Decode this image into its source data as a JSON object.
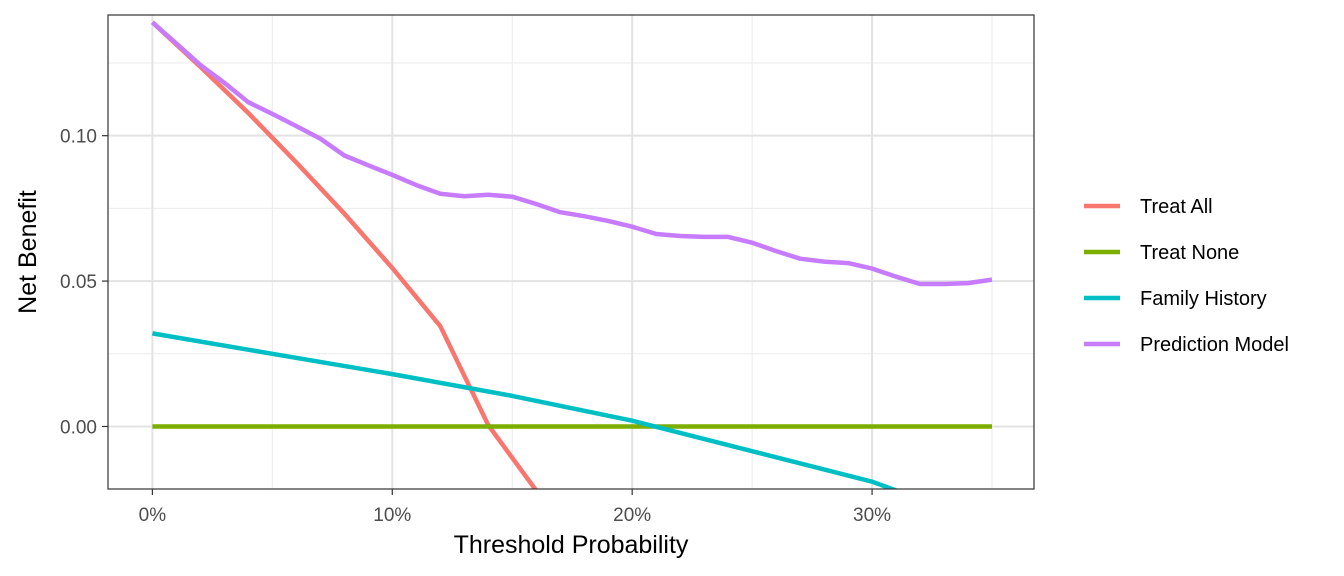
{
  "chart_data": {
    "type": "line",
    "title": "",
    "xlabel": "Threshold Probability",
    "ylabel": "Net Benefit",
    "xlim": [
      -0.0185,
      0.3675
    ],
    "ylim": [
      -0.0215,
      0.1415
    ],
    "x_ticks": [
      0,
      0.1,
      0.2,
      0.3
    ],
    "x_tick_labels": [
      "0%",
      "10%",
      "20%",
      "30%"
    ],
    "y_ticks": [
      0,
      0.05,
      0.1
    ],
    "y_tick_labels": [
      "0.00",
      "0.05",
      "0.10"
    ],
    "grid": true,
    "legend_position": "right",
    "series": [
      {
        "name": "Treat All",
        "color": "#F8766D",
        "x": [
          0,
          0.02,
          0.04,
          0.06,
          0.08,
          0.1,
          0.12,
          0.14,
          0.16
        ],
        "y": [
          0.139,
          0.1237,
          0.1078,
          0.0908,
          0.0732,
          0.0545,
          0.0345,
          0.0005,
          -0.022
        ]
      },
      {
        "name": "Treat None",
        "color": "#7CAE00",
        "x": [
          0,
          0.35
        ],
        "y": [
          0,
          0
        ]
      },
      {
        "name": "Family History",
        "color": "#00BFC4",
        "x": [
          0,
          0.05,
          0.1,
          0.15,
          0.2,
          0.25,
          0.3,
          0.31
        ],
        "y": [
          0.032,
          0.025,
          0.018,
          0.0105,
          0.002,
          -0.0085,
          -0.019,
          -0.022
        ]
      },
      {
        "name": "Prediction Model",
        "color": "#C77CFF",
        "x": [
          0,
          0.01,
          0.02,
          0.03,
          0.04,
          0.05,
          0.06,
          0.07,
          0.08,
          0.09,
          0.1,
          0.11,
          0.12,
          0.13,
          0.14,
          0.15,
          0.16,
          0.17,
          0.18,
          0.19,
          0.2,
          0.21,
          0.22,
          0.23,
          0.24,
          0.25,
          0.26,
          0.27,
          0.28,
          0.29,
          0.3,
          0.31,
          0.32,
          0.33,
          0.34,
          0.35
        ],
        "y": [
          0.139,
          0.1317,
          0.1243,
          0.1182,
          0.1115,
          0.1075,
          0.1033,
          0.099,
          0.0932,
          0.0898,
          0.0865,
          0.083,
          0.08,
          0.0792,
          0.0797,
          0.079,
          0.0765,
          0.0737,
          0.0723,
          0.0707,
          0.0687,
          0.0662,
          0.0655,
          0.0652,
          0.0652,
          0.0632,
          0.0603,
          0.0577,
          0.0567,
          0.0562,
          0.0543,
          0.0515,
          0.049,
          0.049,
          0.0493,
          0.0505
        ]
      }
    ]
  }
}
